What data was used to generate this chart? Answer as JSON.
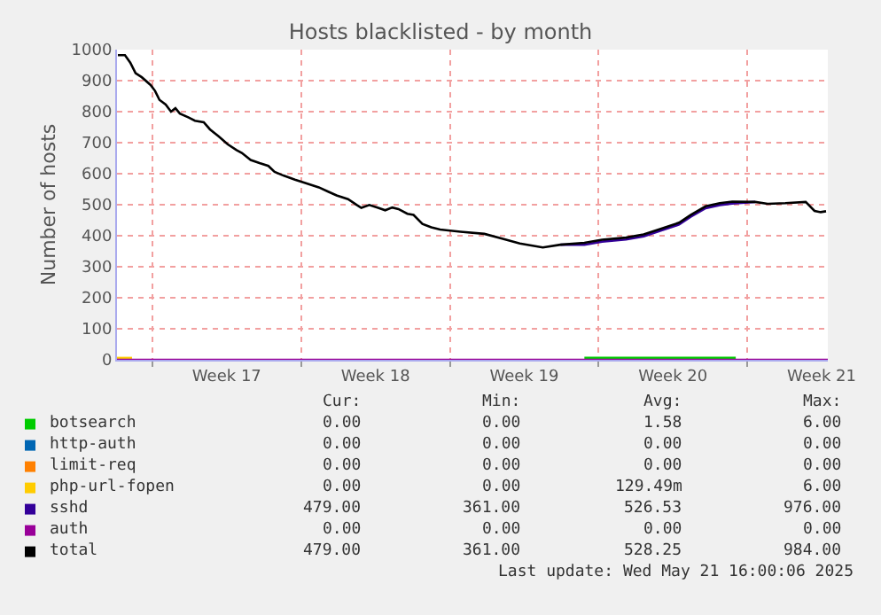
{
  "chart_data": {
    "type": "line",
    "title": "Hosts blacklisted - by month",
    "ylabel": "Number of hosts",
    "xlim": [
      "2025-04-19T08:00",
      "2025-05-22T19:00"
    ],
    "xticks": [
      {
        "value": "2025-04-21",
        "label": null
      },
      {
        "value": "2025-04-24T12:00",
        "label": "Week 17"
      },
      {
        "value": "2025-04-28",
        "label": null
      },
      {
        "value": "2025-05-01T12:00",
        "label": "Week 18"
      },
      {
        "value": "2025-05-05",
        "label": null
      },
      {
        "value": "2025-05-08T12:00",
        "label": "Week 19"
      },
      {
        "value": "2025-05-12",
        "label": null
      },
      {
        "value": "2025-05-15T12:00",
        "label": "Week 20"
      },
      {
        "value": "2025-05-19",
        "label": null
      },
      {
        "value": "2025-05-22T12:00",
        "label": "Week 21"
      }
    ],
    "ylim": [
      0,
      1000
    ],
    "yticks": [
      0,
      100,
      200,
      300,
      400,
      500,
      600,
      700,
      800,
      900,
      1000
    ],
    "grid": true,
    "legend": "bottom",
    "marker": "none",
    "line_style": "solid",
    "series": [
      {
        "name": "botsearch",
        "color": "#00cc00",
        "x": [
          "2025-05-11T08:00",
          "2025-05-18T11:00"
        ],
        "values": [
          6,
          6
        ]
      },
      {
        "name": "http-auth",
        "color": "#0066b3"
      },
      {
        "name": "limit-req",
        "color": "#ff8000"
      },
      {
        "name": "php-url-fopen",
        "color": "#ffcc00",
        "x": [
          "2025-04-19T08:00",
          "2025-04-20T01:00"
        ],
        "values": [
          6,
          6
        ]
      },
      {
        "name": "sshd",
        "color": "#330099",
        "x": [
          "2025-05-10T05:00",
          "2025-05-11T08:00",
          "2025-05-12T04:00",
          "2025-05-13T07:00",
          "2025-05-14T03:00",
          "2025-05-14T23:00",
          "2025-05-15T19:00",
          "2025-05-16T08:00",
          "2025-05-17T01:00",
          "2025-05-17T17:00",
          "2025-05-18T07:00",
          "2025-05-19T09:00"
        ],
        "values": [
          371,
          371,
          381,
          388,
          398,
          417,
          436,
          461,
          489,
          499,
          504,
          509
        ]
      },
      {
        "name": "auth",
        "color": "#990099",
        "x": [
          "2025-04-19T08:00",
          "2025-05-22T19:00"
        ],
        "values": [
          0,
          0
        ]
      },
      {
        "name": "total",
        "color": "#000000",
        "x": [
          "2025-04-19T09:00",
          "2025-04-19T17:00",
          "2025-04-19T23:00",
          "2025-04-20T05:00",
          "2025-04-20T12:00",
          "2025-04-20T22:00",
          "2025-04-21T03:00",
          "2025-04-21T08:00",
          "2025-04-21T15:00",
          "2025-04-21T21:00",
          "2025-04-22T02:00",
          "2025-04-22T07:00",
          "2025-04-22T17:00",
          "2025-04-23T00:00",
          "2025-04-23T10:00",
          "2025-04-23T17:00",
          "2025-04-24T03:00",
          "2025-04-24T13:00",
          "2025-04-24T23:00",
          "2025-04-25T05:00",
          "2025-04-25T15:00",
          "2025-04-26T01:00",
          "2025-04-26T11:00",
          "2025-04-26T18:00",
          "2025-04-27T04:00",
          "2025-04-27T17:00",
          "2025-04-28T07:00",
          "2025-04-28T20:00",
          "2025-04-29T06:00",
          "2025-04-29T16:00",
          "2025-04-30T05:00",
          "2025-04-30T15:00",
          "2025-04-30T20:00",
          "2025-05-01T05:00",
          "2025-05-01T15:00",
          "2025-05-01T23:00",
          "2025-05-02T07:00",
          "2025-05-02T14:00",
          "2025-05-03T00:00",
          "2025-05-03T07:00",
          "2025-05-03T17:00",
          "2025-05-04T03:00",
          "2025-05-04T13:00",
          "2025-05-05T12:00",
          "2025-05-06T15:00",
          "2025-05-07T11:00",
          "2025-05-08T07:00",
          "2025-05-09T09:00",
          "2025-05-10T05:00",
          "2025-05-11T08:00",
          "2025-05-12T04:00",
          "2025-05-13T07:00",
          "2025-05-14T03:00",
          "2025-05-14T23:00",
          "2025-05-15T19:00",
          "2025-05-16T08:00",
          "2025-05-17T01:00",
          "2025-05-17T17:00",
          "2025-05-18T07:00",
          "2025-05-19T09:00",
          "2025-05-19T23:00",
          "2025-05-20T19:00",
          "2025-05-21T18:00",
          "2025-05-22T04:00",
          "2025-05-22T11:00",
          "2025-05-22T17:00"
        ],
        "values": [
          982,
          982,
          958,
          924,
          911,
          886,
          867,
          838,
          823,
          800,
          811,
          794,
          781,
          771,
          766,
          743,
          720,
          695,
          676,
          667,
          644,
          634,
          625,
          606,
          594,
          581,
          568,
          556,
          543,
          530,
          518,
          499,
          490,
          499,
          490,
          482,
          491,
          486,
          471,
          467,
          438,
          427,
          420,
          413,
          406,
          391,
          375,
          362,
          371,
          377,
          387,
          394,
          404,
          423,
          442,
          467,
          495,
          505,
          510,
          509,
          503,
          505,
          509,
          480,
          476,
          479
        ]
      }
    ],
    "annotations": [
      "Cur:",
      "Min:",
      "Avg:",
      "Max:",
      "0.00",
      "0.00",
      "1.58",
      "6.00",
      "0.00",
      "0.00",
      "0.00",
      "0.00",
      "0.00",
      "0.00",
      "0.00",
      "0.00",
      "0.00",
      "0.00",
      "129.49m",
      "6.00",
      "479.00",
      "361.00",
      "526.53",
      "976.00",
      "0.00",
      "0.00",
      "0.00",
      "0.00",
      "479.00",
      "361.00",
      "528.25",
      "984.00",
      "Last update: Wed May 21 16:00:06 2025"
    ]
  }
}
